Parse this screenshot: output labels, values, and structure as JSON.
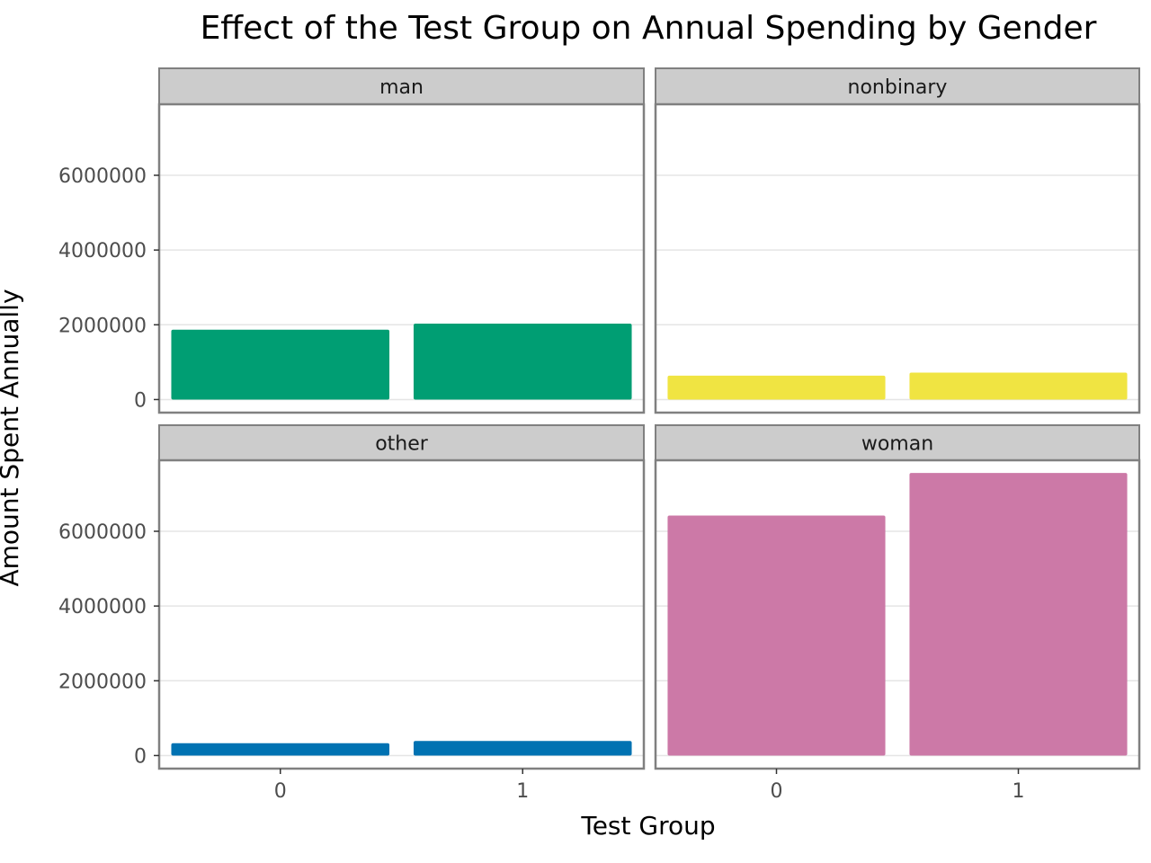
{
  "chart_data": {
    "type": "bar",
    "title": "Effect of the Test Group on Annual Spending by Gender",
    "xlabel": "Test Group",
    "ylabel": "Amount Spent Annually",
    "categories": [
      "0",
      "1"
    ],
    "y_ticks": [
      0,
      2000000,
      4000000,
      6000000
    ],
    "y_tick_labels": [
      "0",
      "2000000",
      "4000000",
      "6000000"
    ],
    "ylim": [
      -350000,
      7900000
    ],
    "grid": true,
    "facets": [
      {
        "label": "man",
        "color": "#009E73",
        "values": [
          1870000,
          2030000
        ]
      },
      {
        "label": "nonbinary",
        "color": "#F0E442",
        "values": [
          640000,
          720000
        ]
      },
      {
        "label": "other",
        "color": "#0072B2",
        "values": [
          330000,
          390000
        ]
      },
      {
        "label": "woman",
        "color": "#CC79A7",
        "values": [
          6420000,
          7560000
        ]
      }
    ]
  }
}
